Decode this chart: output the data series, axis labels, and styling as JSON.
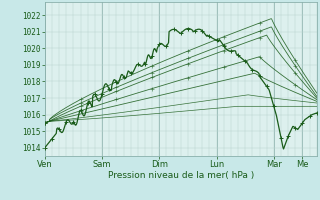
{
  "bg_color": "#c8e8e8",
  "plot_bg_color": "#ddf0ee",
  "grid_color_minor": "#b8d4d0",
  "grid_color_major": "#a0c0bc",
  "line_color": "#1a5c1a",
  "xlabel": "Pression niveau de la mer( hPa )",
  "xlabels": [
    "Ven",
    "Sam",
    "Dim",
    "Lun",
    "Mar",
    "Me"
  ],
  "xtick_positions": [
    0,
    24,
    48,
    72,
    96,
    108
  ],
  "ylim": [
    1013.5,
    1022.8
  ],
  "yticks": [
    1014,
    1015,
    1016,
    1017,
    1018,
    1019,
    1020,
    1021,
    1022
  ],
  "total_hours": 114
}
